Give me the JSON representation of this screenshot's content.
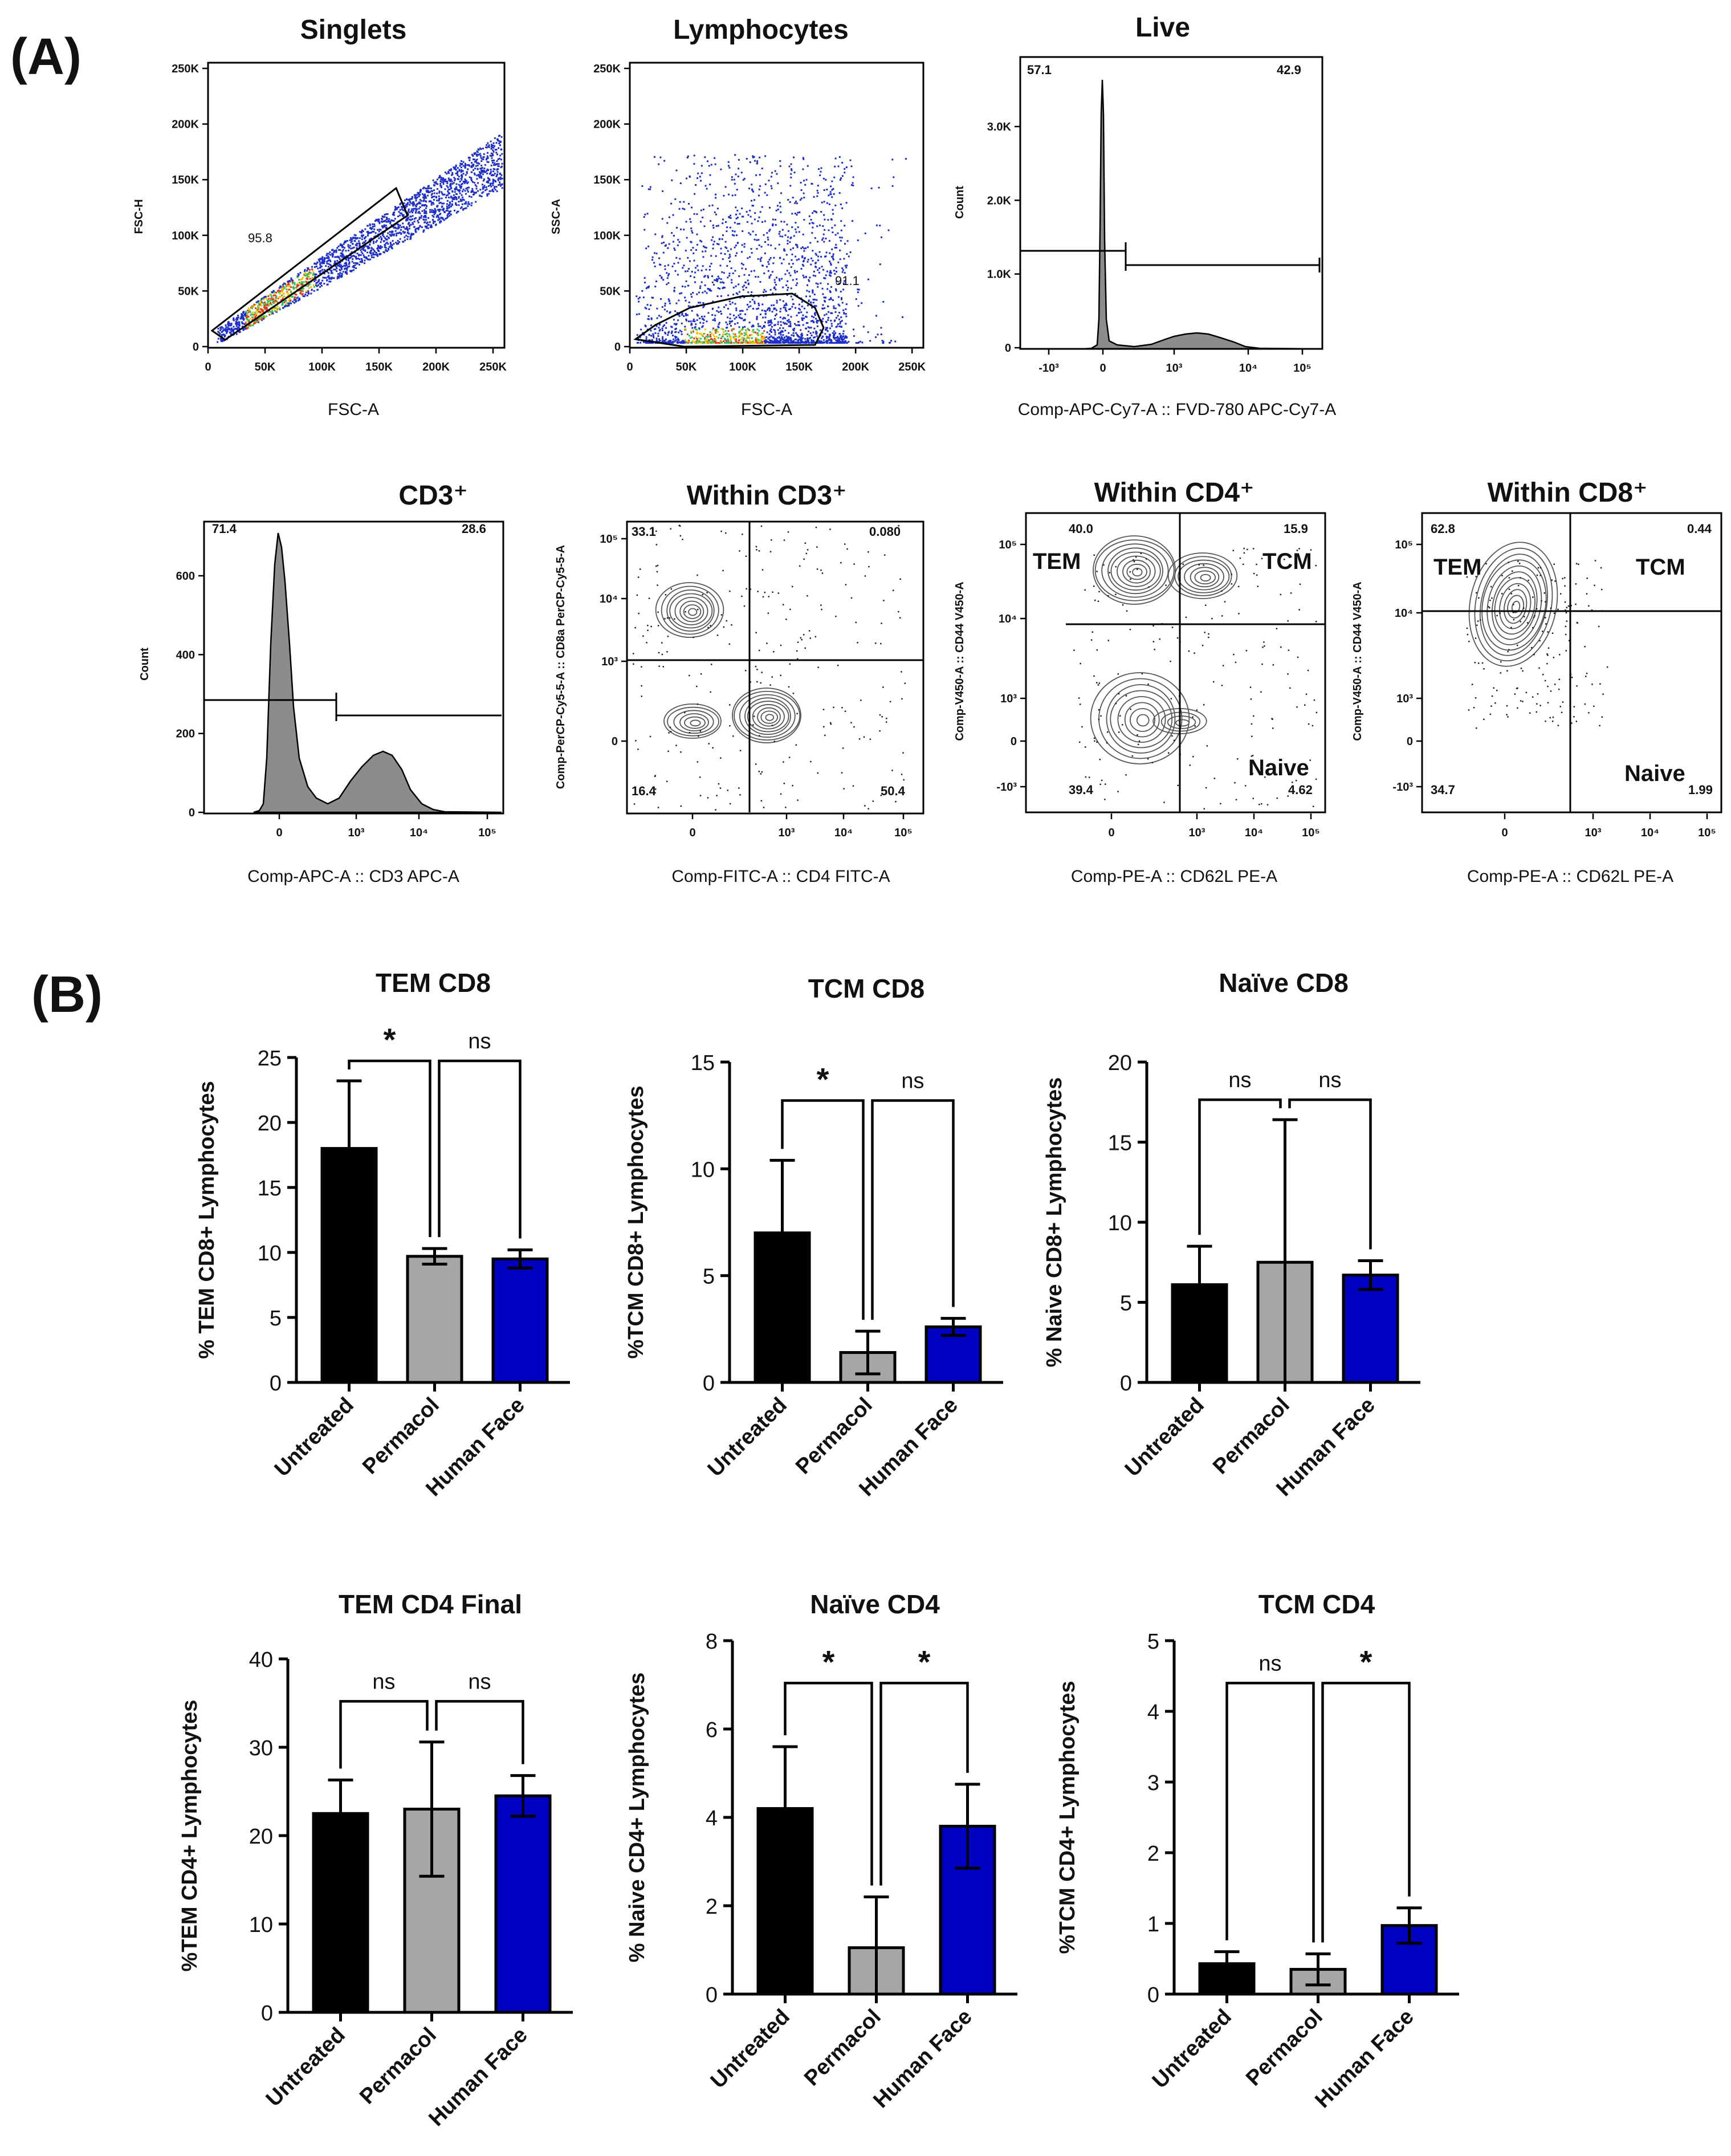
{
  "panel_labels": {
    "a": "(A)",
    "b": "(B)"
  },
  "flow": {
    "singlets": {
      "title": "Singlets",
      "xlabel": "FSC-A",
      "ylabel": "FSC-H",
      "x_ticks": [
        "0",
        "50K",
        "100K",
        "150K",
        "200K",
        "250K"
      ],
      "y_ticks": [
        "0",
        "50K",
        "100K",
        "150K",
        "200K",
        "250K"
      ],
      "gate_value": "95.8"
    },
    "lymphocytes": {
      "title": "Lymphocytes",
      "xlabel": "FSC-A",
      "ylabel": "SSC-A",
      "x_ticks": [
        "0",
        "50K",
        "100K",
        "150K",
        "200K",
        "250K"
      ],
      "y_ticks": [
        "0",
        "50K",
        "100K",
        "150K",
        "200K",
        "250K"
      ],
      "gate_value": "91.1"
    },
    "live": {
      "title": "Live",
      "xlabel": "Comp-APC-Cy7-A :: FVD-780 APC-Cy7-A",
      "ylabel": "Count",
      "y_ticks": [
        "0",
        "1.0K",
        "2.0K",
        "3.0K"
      ],
      "x_ticks": [
        "-10³",
        "0",
        "10³",
        "10⁴",
        "10⁵"
      ],
      "left_value": "57.1",
      "right_value": "42.9"
    },
    "cd3": {
      "title": "CD3⁺",
      "xlabel": "Comp-APC-A :: CD3 APC-A",
      "ylabel": "Count",
      "y_ticks": [
        "0",
        "200",
        "400",
        "600"
      ],
      "x_ticks": [
        "0",
        "10³",
        "10⁴",
        "10⁵"
      ],
      "left_value": "71.4",
      "right_value": "28.6"
    },
    "within_cd3": {
      "title": "Within CD3⁺",
      "xlabel": "Comp-FITC-A :: CD4 FITC-A",
      "ylabel": "Comp-PerCP-Cy5-5-A :: CD8a PerCP-Cy5-5-A",
      "y_ticks": [
        "0",
        "10³",
        "10⁴",
        "10⁵"
      ],
      "x_ticks": [
        "0",
        "10³",
        "10⁴",
        "10⁵"
      ],
      "q_ul": "33.1",
      "q_ur": "0.080",
      "q_ll": "16.4",
      "q_lr": "50.4"
    },
    "within_cd4": {
      "title": "Within CD4⁺",
      "xlabel": "Comp-PE-A :: CD62L PE-A",
      "ylabel": "Comp-V450-A :: CD44 V450-A",
      "y_ticks": [
        "-10³",
        "0",
        "10³",
        "10⁴",
        "10⁵"
      ],
      "x_ticks": [
        "0",
        "10³",
        "10⁴",
        "10⁵"
      ],
      "q_ul": "40.0",
      "q_ur": "15.9",
      "q_ll": "39.4",
      "q_lr": "4.62",
      "tem": "TEM",
      "tcm": "TCM",
      "naive": "Naive"
    },
    "within_cd8": {
      "title": "Within CD8⁺",
      "xlabel": "Comp-PE-A :: CD62L PE-A",
      "ylabel": "Comp-V450-A :: CD44 V450-A",
      "y_ticks": [
        "-10³",
        "0",
        "10³",
        "10⁴",
        "10⁵"
      ],
      "x_ticks": [
        "0",
        "10³",
        "10⁴",
        "10⁵"
      ],
      "q_ul": "62.8",
      "q_ur": "0.44",
      "q_ll": "34.7",
      "q_lr": "1.99",
      "tem": "TEM",
      "tcm": "TCM",
      "naive": "Naive"
    }
  },
  "colors": {
    "untreated": "#000000",
    "permacol": "#a6a6a6",
    "human_face": "#0000c0"
  },
  "chart_data": [
    {
      "type": "bar",
      "title": "TEM CD8",
      "ylabel": "% TEM CD8+ Lymphocytes",
      "categories": [
        "Untreated",
        "Permacol",
        "Human Face"
      ],
      "values": [
        18.0,
        9.7,
        9.5
      ],
      "errors": [
        5.2,
        0.6,
        0.7
      ],
      "ylim": [
        0,
        25
      ],
      "yticks": [
        "0",
        "5",
        "10",
        "15",
        "20",
        "25"
      ],
      "brackets": [
        {
          "label": "*"
        },
        {
          "label": "ns"
        }
      ]
    },
    {
      "type": "bar",
      "title": "TCM CD8",
      "ylabel": "%TCM CD8+ Lymphocytes",
      "categories": [
        "Untreated",
        "Permacol",
        "Human Face"
      ],
      "values": [
        7.0,
        1.4,
        2.6
      ],
      "errors": [
        3.4,
        1.0,
        0.4
      ],
      "ylim": [
        0,
        15
      ],
      "yticks": [
        "0",
        "5",
        "10",
        "15"
      ],
      "brackets": [
        {
          "label": "*"
        },
        {
          "label": "ns"
        }
      ]
    },
    {
      "type": "bar",
      "title": "Naïve CD8",
      "ylabel": "% Naive CD8+ Lymphocytes",
      "categories": [
        "Untreated",
        "Permacol",
        "Human Face"
      ],
      "values": [
        6.1,
        7.5,
        6.7
      ],
      "errors": [
        2.4,
        8.9,
        0.9
      ],
      "ylim": [
        0,
        20
      ],
      "yticks": [
        "0",
        "5",
        "10",
        "15",
        "20"
      ],
      "brackets": [
        {
          "label": "ns"
        },
        {
          "label": "ns"
        }
      ]
    },
    {
      "type": "bar",
      "title": "TEM CD4 Final",
      "ylabel": "%TEM CD4+ Lymphocytes",
      "categories": [
        "Untreated",
        "Permacol",
        "Human Face"
      ],
      "values": [
        22.5,
        23.0,
        24.5
      ],
      "errors": [
        3.8,
        7.6,
        2.3
      ],
      "ylim": [
        0,
        40
      ],
      "yticks": [
        "0",
        "10",
        "20",
        "30",
        "40"
      ],
      "brackets": [
        {
          "label": "ns"
        },
        {
          "label": "ns"
        }
      ]
    },
    {
      "type": "bar",
      "title": "Naïve CD4",
      "ylabel": "% Naive CD4+ Lymphocytes",
      "categories": [
        "Untreated",
        "Permacol",
        "Human Face"
      ],
      "values": [
        4.2,
        1.05,
        3.8
      ],
      "errors": [
        1.4,
        1.15,
        0.95
      ],
      "ylim": [
        0,
        8
      ],
      "yticks": [
        "0",
        "2",
        "4",
        "6",
        "8"
      ],
      "brackets": [
        {
          "label": "*"
        },
        {
          "label": "*"
        }
      ]
    },
    {
      "type": "bar",
      "title": "TCM CD4",
      "ylabel": "%TCM CD4+ Lymphocytes",
      "categories": [
        "Untreated",
        "Permacol",
        "Human Face"
      ],
      "values": [
        0.43,
        0.35,
        0.97
      ],
      "errors": [
        0.17,
        0.22,
        0.25
      ],
      "ylim": [
        0,
        5
      ],
      "yticks": [
        "0",
        "1",
        "2",
        "3",
        "4",
        "5"
      ],
      "brackets": [
        {
          "label": "ns"
        },
        {
          "label": "*"
        }
      ]
    }
  ]
}
